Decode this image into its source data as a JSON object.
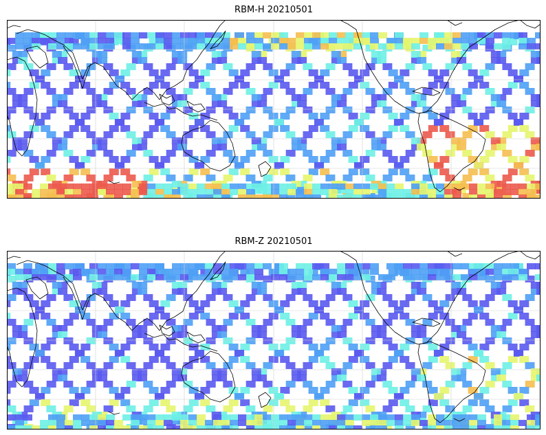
{
  "figure": {
    "panels": [
      {
        "title": "RBM-H 20210501",
        "mode": "high"
      },
      {
        "title": "RBM-Z 20210501",
        "mode": "low"
      }
    ],
    "colors": {
      "low": "#5a5af0",
      "mid_low": "#4fa0f5",
      "mid": "#6ef0e6",
      "mid_high": "#e6f56e",
      "high": "#f5be50",
      "very_high": "#ec5a4e",
      "frame": "#000000",
      "coastline": "#000000",
      "gridline": "#cfcfcf"
    }
  }
}
